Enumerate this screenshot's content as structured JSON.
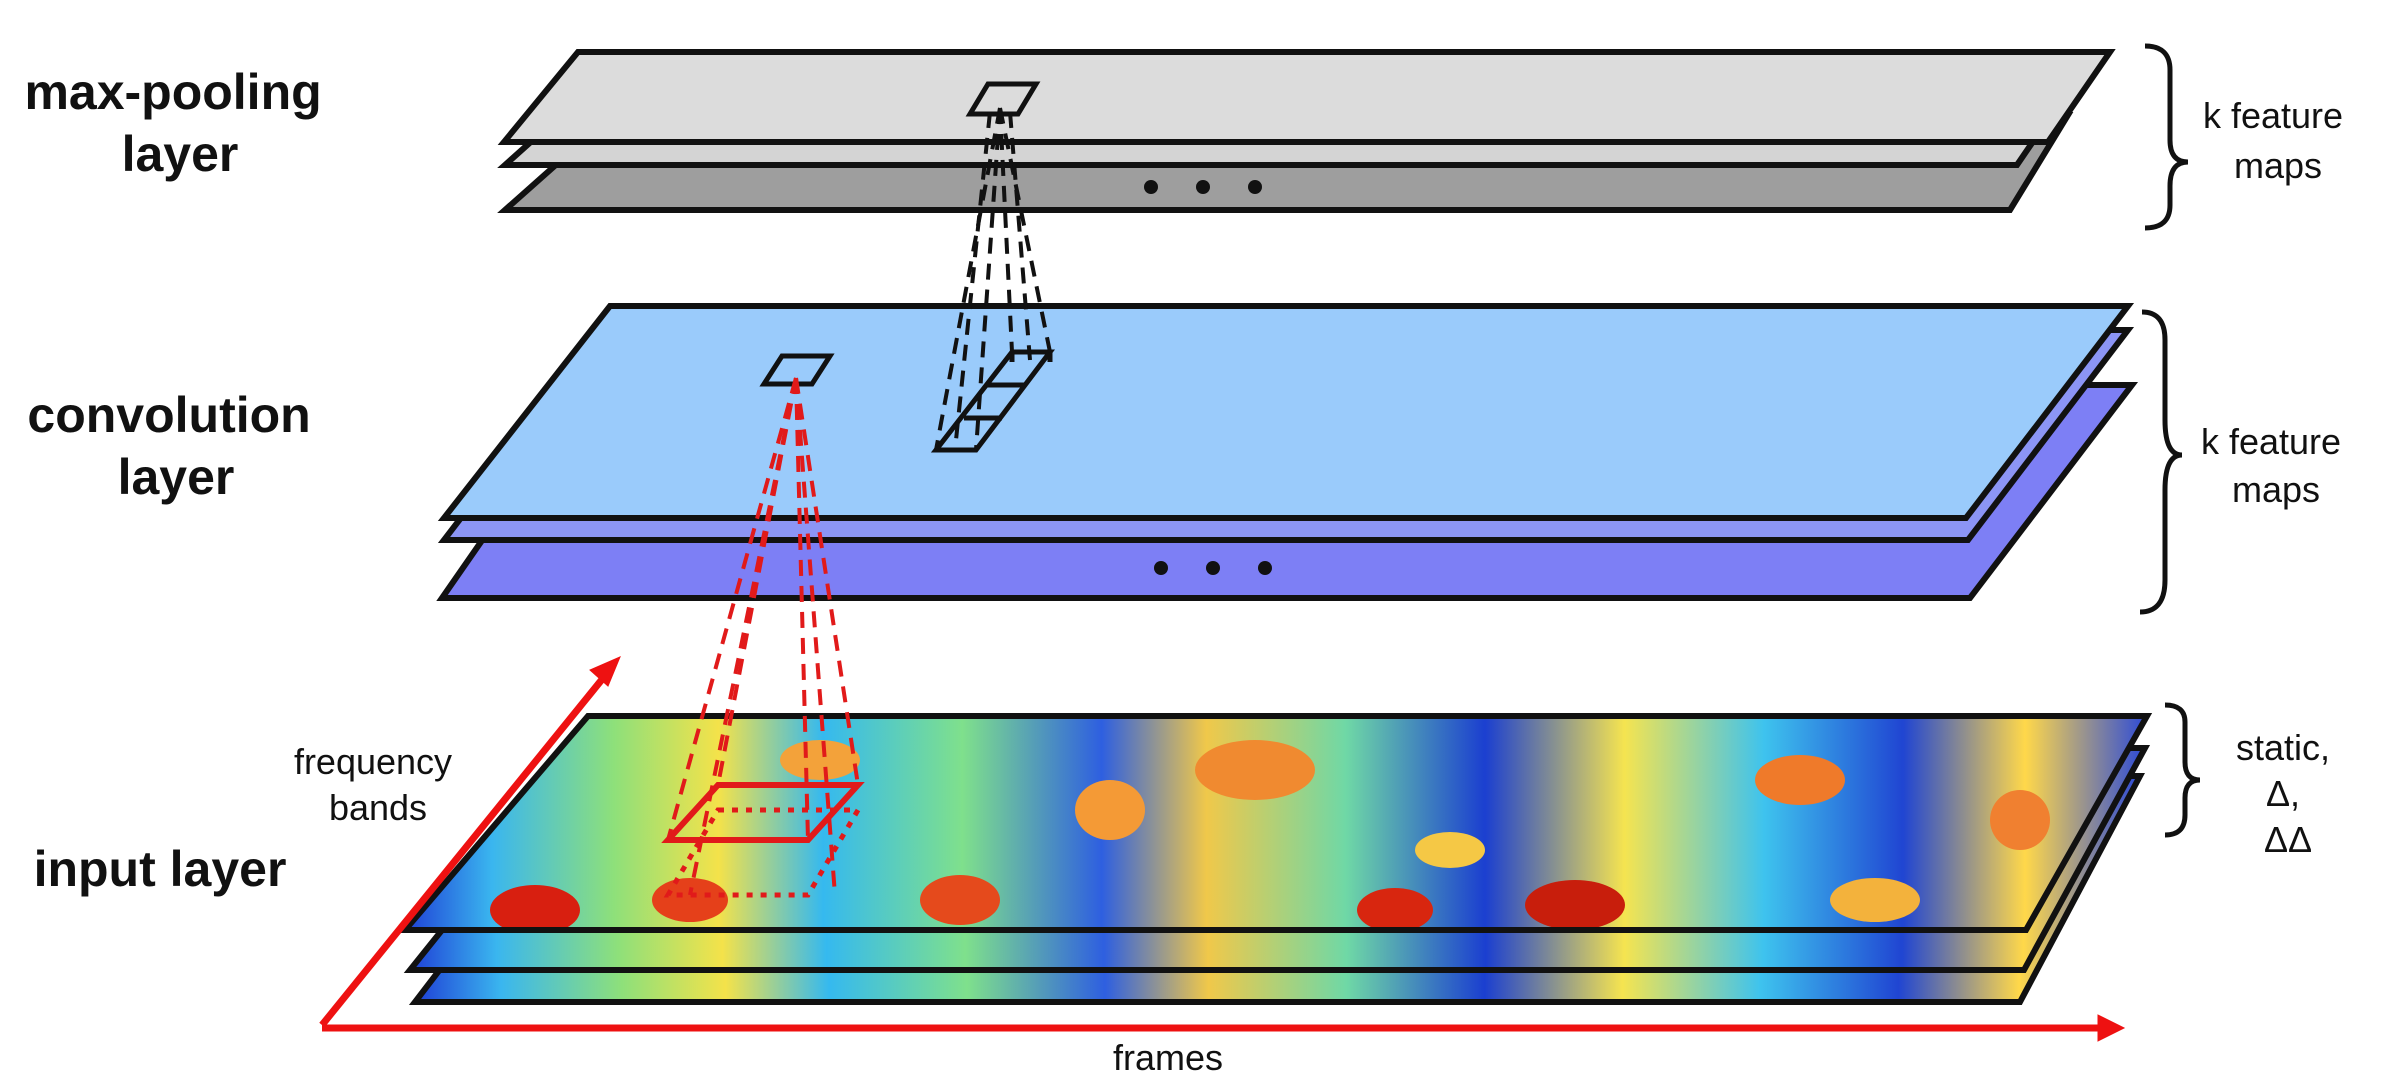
{
  "layers": {
    "maxpool": {
      "title_lines": [
        "max-pooling",
        "layer"
      ],
      "annotation_lines": [
        "k feature",
        "maps"
      ],
      "colors": {
        "front": "#dcdcdc",
        "middle": "#d4d4d4",
        "back": "#9e9e9e"
      }
    },
    "conv": {
      "title_lines": [
        "convolution",
        "layer"
      ],
      "annotation_lines": [
        "k feature",
        "maps"
      ],
      "colors": {
        "front": "#9acbfb",
        "middle": "#8c95f5",
        "back": "#7d7ff5"
      }
    },
    "input": {
      "title": "input layer",
      "annotation_lines": [
        "static,",
        "Δ,",
        "ΔΔ"
      ]
    }
  },
  "axes": {
    "frequency_label_lines": [
      "frequency",
      "bands"
    ],
    "frames_label": "frames",
    "color": "#ee1111"
  },
  "connection_colors": {
    "conv_to_pool": "#111111",
    "input_to_conv": "#e11a1a"
  }
}
